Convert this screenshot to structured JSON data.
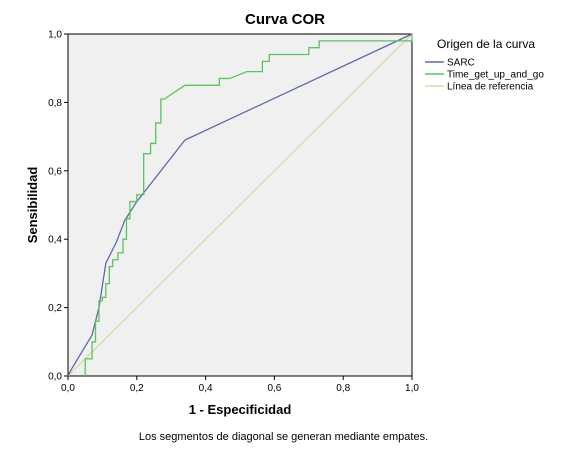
{
  "chart_data": {
    "type": "line",
    "title": "Curva COR",
    "xlabel": "1 - Especificidad",
    "ylabel": "Sensibilidad",
    "xlim": [
      0,
      1
    ],
    "ylim": [
      0,
      1
    ],
    "x_ticks": [
      "0,0",
      "0,2",
      "0,4",
      "0,6",
      "0,8",
      "1,0"
    ],
    "y_ticks": [
      "0,0",
      "0,2",
      "0,4",
      "0,6",
      "0,8",
      "1,0"
    ],
    "grid": false,
    "plot_background": "#f0f0f0",
    "legend": {
      "title": "Origen de la curva",
      "placement": "right"
    },
    "series": [
      {
        "name": "SARC",
        "color": "#5b6aa8",
        "step": false,
        "points": [
          [
            0,
            0
          ],
          [
            0.01,
            0.02
          ],
          [
            0.04,
            0.07
          ],
          [
            0.07,
            0.12
          ],
          [
            0.09,
            0.2
          ],
          [
            0.11,
            0.33
          ],
          [
            0.14,
            0.39
          ],
          [
            0.165,
            0.455
          ],
          [
            0.2,
            0.51
          ],
          [
            0.34,
            0.69
          ],
          [
            1,
            1
          ]
        ]
      },
      {
        "name": "Time_get_up_and_go",
        "color": "#5cc35c",
        "step": true,
        "points": [
          [
            0.05,
            0
          ],
          [
            0.05,
            0.05
          ],
          [
            0.07,
            0.05
          ],
          [
            0.07,
            0.1
          ],
          [
            0.08,
            0.1
          ],
          [
            0.08,
            0.16
          ],
          [
            0.09,
            0.16
          ],
          [
            0.09,
            0.22
          ],
          [
            0.1,
            0.22
          ],
          [
            0.1,
            0.23
          ],
          [
            0.11,
            0.23
          ],
          [
            0.11,
            0.27
          ],
          [
            0.12,
            0.27
          ],
          [
            0.12,
            0.32
          ],
          [
            0.13,
            0.32
          ],
          [
            0.13,
            0.34
          ],
          [
            0.145,
            0.34
          ],
          [
            0.145,
            0.36
          ],
          [
            0.16,
            0.36
          ],
          [
            0.16,
            0.4
          ],
          [
            0.17,
            0.4
          ],
          [
            0.17,
            0.46
          ],
          [
            0.18,
            0.46
          ],
          [
            0.18,
            0.51
          ],
          [
            0.2,
            0.51
          ],
          [
            0.2,
            0.53
          ],
          [
            0.22,
            0.53
          ],
          [
            0.22,
            0.65
          ],
          [
            0.24,
            0.65
          ],
          [
            0.24,
            0.68
          ],
          [
            0.255,
            0.68
          ],
          [
            0.255,
            0.74
          ],
          [
            0.27,
            0.74
          ],
          [
            0.27,
            0.81
          ],
          [
            0.28,
            0.81
          ],
          [
            0.34,
            0.85
          ],
          [
            0.44,
            0.85
          ],
          [
            0.44,
            0.87
          ],
          [
            0.47,
            0.87
          ],
          [
            0.52,
            0.89
          ],
          [
            0.565,
            0.89
          ],
          [
            0.565,
            0.92
          ],
          [
            0.585,
            0.92
          ],
          [
            0.585,
            0.94
          ],
          [
            0.7,
            0.94
          ],
          [
            0.7,
            0.96
          ],
          [
            0.73,
            0.96
          ],
          [
            0.73,
            0.98
          ],
          [
            1,
            0.98
          ],
          [
            1,
            1
          ]
        ]
      },
      {
        "name": "Línea de referencia",
        "color": "#d8dca8",
        "step": false,
        "points": [
          [
            0,
            0
          ],
          [
            1,
            1
          ]
        ]
      }
    ],
    "footnote": "Los segmentos de diagonal se generan mediante empates."
  }
}
